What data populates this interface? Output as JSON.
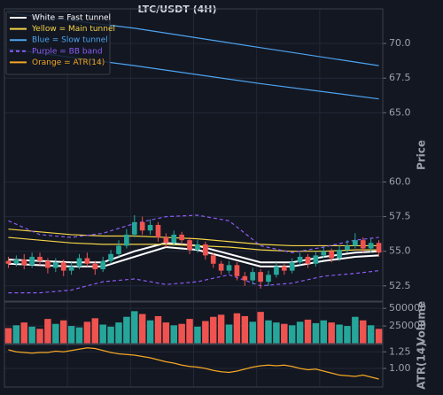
{
  "chart_data": [
    {
      "type": "candlestick",
      "title": "LTC/USDT (4H)",
      "ylabel": "Price",
      "ylim": [
        51.4,
        72.5
      ],
      "yticks": [
        52.5,
        {
          "value": 55,
          "label": "55.0"
        },
        57.5,
        {
          "value": 60,
          "label": "60.0"
        },
        {
          "value": 65,
          "label": "65.0"
        },
        67.5,
        {
          "value": 70,
          "label": "70.0"
        }
      ],
      "grid": true,
      "legend": "upper left",
      "color_up": "#26a69a",
      "color_down": "#ef5350",
      "open": [
        54.3,
        54.1,
        54.4,
        54.0,
        54.6,
        54.3,
        53.8,
        54.2,
        53.6,
        53.9,
        54.5,
        54.1,
        53.7,
        54.3,
        54.8,
        55.4,
        56.2,
        57.1,
        56.5,
        56.9,
        56.0,
        55.6,
        56.2,
        55.8,
        55.1,
        55.5,
        54.7,
        54.1,
        53.6,
        54.0,
        53.2,
        52.9,
        53.5,
        52.8,
        53.3,
        53.9,
        53.6,
        54.2,
        54.6,
        54.1,
        54.7,
        55.0,
        54.5,
        55.1,
        55.4,
        55.8,
        55.2,
        55.6
      ],
      "high": [
        54.6,
        54.7,
        54.8,
        54.9,
        54.9,
        54.5,
        54.5,
        54.4,
        54.2,
        54.8,
        54.9,
        54.3,
        54.6,
        55.1,
        55.8,
        56.6,
        57.6,
        57.5,
        57.3,
        57.1,
        56.3,
        56.5,
        56.4,
        56.0,
        55.8,
        55.7,
        54.9,
        54.3,
        54.3,
        54.2,
        53.5,
        53.8,
        53.7,
        53.6,
        54.2,
        54.1,
        54.5,
        54.9,
        54.8,
        55.0,
        55.3,
        55.2,
        55.4,
        55.8,
        56.3,
        56.0,
        55.9,
        55.8
      ],
      "low": [
        53.8,
        53.9,
        53.7,
        53.8,
        54.0,
        53.4,
        53.5,
        53.2,
        53.3,
        53.7,
        53.9,
        53.3,
        53.5,
        54.1,
        54.6,
        55.2,
        56.0,
        56.2,
        56.2,
        55.7,
        55.3,
        55.4,
        55.5,
        54.8,
        54.9,
        54.4,
        53.8,
        53.3,
        53.4,
        52.9,
        52.5,
        52.6,
        52.3,
        52.5,
        53.1,
        53.3,
        53.4,
        54.0,
        53.8,
        53.9,
        54.5,
        54.2,
        54.3,
        54.9,
        55.2,
        54.9,
        54.9,
        54.6
      ],
      "close": [
        54.1,
        54.4,
        54.0,
        54.6,
        54.3,
        53.8,
        54.2,
        53.6,
        53.9,
        54.5,
        54.1,
        53.7,
        54.3,
        54.8,
        55.4,
        56.2,
        57.1,
        56.5,
        56.9,
        56.0,
        55.6,
        56.2,
        55.8,
        55.1,
        55.5,
        54.7,
        54.1,
        53.6,
        54.0,
        53.2,
        52.9,
        53.5,
        52.8,
        53.3,
        53.9,
        53.6,
        54.2,
        54.6,
        54.1,
        54.7,
        55.0,
        54.5,
        55.1,
        55.4,
        55.8,
        55.2,
        55.6,
        54.9
      ],
      "lines": [
        {
          "name": "White = Fast tunnel",
          "color": "#ffffff",
          "dashed": false,
          "x": [
            0,
            4,
            8,
            12,
            16,
            20,
            24,
            28,
            32,
            36,
            40,
            44,
            47
          ],
          "upper": [
            54.4,
            54.3,
            54.2,
            54.2,
            55.0,
            55.6,
            55.4,
            54.8,
            54.2,
            54.2,
            54.6,
            54.9,
            55.0
          ],
          "lower": [
            54.1,
            54.0,
            53.9,
            53.9,
            54.6,
            55.3,
            55.1,
            54.5,
            53.9,
            53.9,
            54.3,
            54.6,
            54.7
          ]
        },
        {
          "name": "Yellow = Main tunnel",
          "color": "#f5d547",
          "dashed": false,
          "x": [
            0,
            4,
            8,
            12,
            16,
            20,
            24,
            28,
            32,
            36,
            40,
            44,
            47
          ],
          "upper": [
            56.6,
            56.4,
            56.2,
            56.1,
            56.1,
            56.0,
            55.9,
            55.7,
            55.5,
            55.4,
            55.4,
            55.4,
            55.4
          ],
          "lower": [
            56.0,
            55.8,
            55.6,
            55.5,
            55.5,
            55.5,
            55.4,
            55.3,
            55.1,
            55.0,
            55.0,
            55.1,
            55.1
          ]
        },
        {
          "name": "Blue = Slow tunnel",
          "color": "#4ea4f0",
          "dashed": false,
          "x": [
            0,
            16,
            32,
            47
          ],
          "upper": [
            72.2,
            71.1,
            69.7,
            68.4
          ],
          "lower": [
            69.6,
            68.4,
            67.1,
            66.0
          ]
        },
        {
          "name": "Purple = BB band",
          "color": "#8b5cf6",
          "dashed": true,
          "x": [
            0,
            4,
            8,
            12,
            16,
            20,
            24,
            28,
            32,
            36,
            40,
            44,
            47
          ],
          "upper": [
            57.2,
            56.2,
            56.0,
            56.3,
            57.0,
            57.5,
            57.6,
            57.2,
            55.4,
            54.9,
            55.3,
            55.8,
            56.0
          ],
          "lower": [
            52.0,
            52.0,
            52.2,
            52.8,
            53.0,
            52.6,
            52.8,
            53.3,
            52.5,
            52.7,
            53.2,
            53.4,
            53.6
          ]
        }
      ]
    },
    {
      "type": "volume",
      "ylabel": "Volume",
      "ylim": [
        0,
        590000
      ],
      "yticks": [
        250000,
        500000
      ],
      "grid": true,
      "color_up": "#26a69a",
      "color_down": "#ef5350",
      "values": [
        220000,
        260000,
        300000,
        240000,
        210000,
        350000,
        280000,
        330000,
        250000,
        230000,
        310000,
        360000,
        270000,
        240000,
        300000,
        380000,
        460000,
        420000,
        330000,
        390000,
        300000,
        260000,
        280000,
        350000,
        240000,
        320000,
        380000,
        410000,
        270000,
        430000,
        390000,
        310000,
        450000,
        330000,
        300000,
        280000,
        260000,
        310000,
        340000,
        290000,
        330000,
        300000,
        270000,
        250000,
        380000,
        330000,
        260000,
        210000
      ]
    },
    {
      "type": "line",
      "ylabel": "ATR(14)",
      "ylim": [
        0.72,
        1.36
      ],
      "yticks": [
        {
          "value": 1,
          "label": "1.00"
        },
        {
          "value": 1.25,
          "label": "1.25"
        }
      ],
      "grid": true,
      "series": [
        {
          "name": "Orange = ATR(14)",
          "color": "#f5a623",
          "values": [
            1.28,
            1.25,
            1.24,
            1.23,
            1.24,
            1.24,
            1.26,
            1.25,
            1.27,
            1.29,
            1.31,
            1.3,
            1.27,
            1.24,
            1.22,
            1.21,
            1.2,
            1.18,
            1.16,
            1.13,
            1.1,
            1.08,
            1.05,
            1.03,
            1.02,
            1.0,
            0.97,
            0.95,
            0.94,
            0.96,
            0.99,
            1.02,
            1.04,
            1.05,
            1.04,
            1.05,
            1.03,
            1.0,
            0.98,
            0.99,
            0.96,
            0.93,
            0.9,
            0.89,
            0.88,
            0.9,
            0.87,
            0.84
          ]
        }
      ]
    }
  ]
}
